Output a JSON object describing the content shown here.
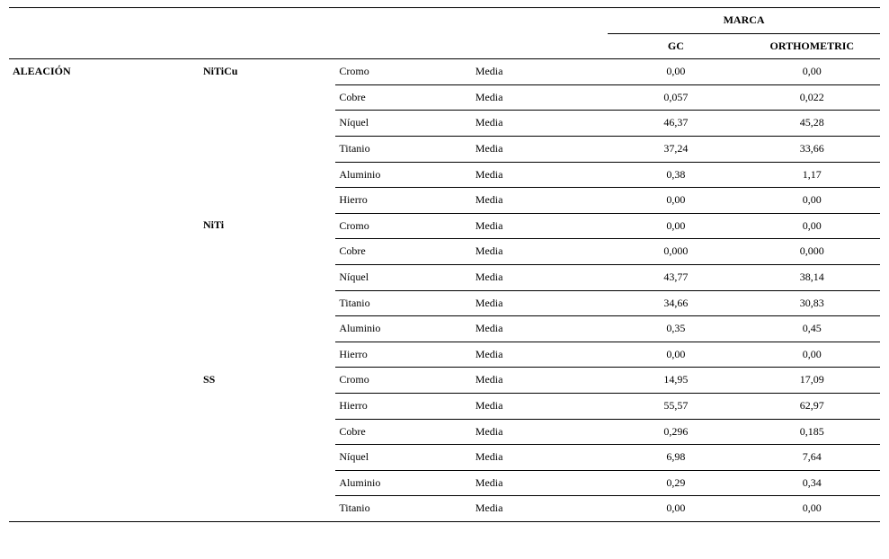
{
  "header": {
    "super_label": "MARCA",
    "col_gc": "GC",
    "col_ortho": "ORTHOMETRIC",
    "row_label": "ALEACIÓN"
  },
  "stat_label": "Media",
  "alloys": [
    {
      "name": "NiTiCu",
      "rows": [
        {
          "element": "Cromo",
          "gc": "0,00",
          "ortho": "0,00"
        },
        {
          "element": "Cobre",
          "gc": "0,057",
          "ortho": "0,022"
        },
        {
          "element": "Níquel",
          "gc": "46,37",
          "ortho": "45,28"
        },
        {
          "element": "Titanio",
          "gc": "37,24",
          "ortho": "33,66"
        },
        {
          "element": "Aluminio",
          "gc": "0,38",
          "ortho": "1,17"
        },
        {
          "element": "Hierro",
          "gc": "0,00",
          "ortho": "0,00"
        }
      ]
    },
    {
      "name": "NiTi",
      "rows": [
        {
          "element": "Cromo",
          "gc": "0,00",
          "ortho": "0,00"
        },
        {
          "element": "Cobre",
          "gc": "0,000",
          "ortho": "0,000"
        },
        {
          "element": "Níquel",
          "gc": "43,77",
          "ortho": "38,14"
        },
        {
          "element": "Titanio",
          "gc": "34,66",
          "ortho": "30,83"
        },
        {
          "element": "Aluminio",
          "gc": "0,35",
          "ortho": "0,45"
        },
        {
          "element": "Hierro",
          "gc": "0,00",
          "ortho": "0,00"
        }
      ]
    },
    {
      "name": "SS",
      "rows": [
        {
          "element": "Cromo",
          "gc": "14,95",
          "ortho": "17,09"
        },
        {
          "element": "Hierro",
          "gc": "55,57",
          "ortho": "62,97"
        },
        {
          "element": "Cobre",
          "gc": "0,296",
          "ortho": "0,185"
        },
        {
          "element": "Níquel",
          "gc": "6,98",
          "ortho": "7,64"
        },
        {
          "element": "Aluminio",
          "gc": "0,29",
          "ortho": "0,34"
        },
        {
          "element": "Titanio",
          "gc": "0,00",
          "ortho": "0,00"
        }
      ]
    }
  ],
  "style": {
    "font_family": "Times New Roman",
    "font_size_pt": 9,
    "text_color": "#000000",
    "background_color": "#ffffff",
    "border_color": "#000000"
  }
}
